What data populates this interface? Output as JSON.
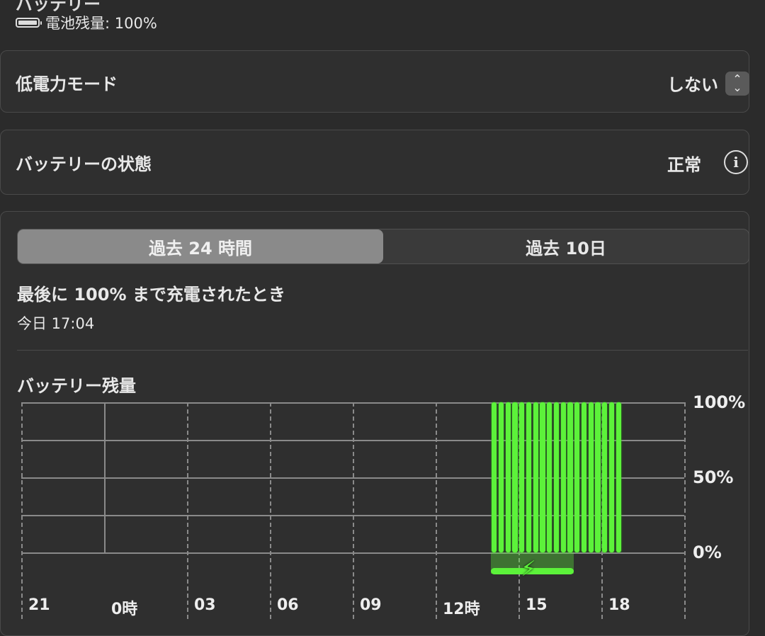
{
  "header": {
    "title": "バッテリー",
    "battery_icon": "battery-full-icon",
    "battery_level_text": "電池残量: 100%"
  },
  "low_power_mode": {
    "label": "低電力モード",
    "value": "しない",
    "icon": "up-down-stepper-icon"
  },
  "battery_health": {
    "label": "バッテリーの状態",
    "value": "正常",
    "icon": "info-icon"
  },
  "tabs": [
    {
      "label": "過去 24 時間",
      "selected": true
    },
    {
      "label": "過去 10日",
      "selected": false
    }
  ],
  "last_charged": {
    "title": "最後に 100% まで充電されたとき",
    "time": "今日 17:04"
  },
  "chart_data": {
    "type": "bar",
    "title": "バッテリー残量",
    "x_tick_labels": [
      "21",
      "0時",
      "03",
      "06",
      "09",
      "12時",
      "15",
      "18"
    ],
    "y_tick_labels": [
      "100%",
      "50%",
      "0%"
    ],
    "ylim": [
      0,
      100
    ],
    "x_range": [
      "21:00",
      "21:00 (+24h)"
    ],
    "bar_interval_minutes": 15,
    "x": [
      "14:00",
      "14:15",
      "14:30",
      "14:45",
      "15:00",
      "15:15",
      "15:30",
      "15:45",
      "16:00",
      "16:15",
      "16:30",
      "16:45",
      "17:00",
      "17:15",
      "17:30",
      "17:45",
      "18:00",
      "18:15",
      "18:30"
    ],
    "values": [
      100,
      100,
      100,
      100,
      100,
      100,
      100,
      100,
      100,
      100,
      100,
      100,
      100,
      100,
      100,
      100,
      100,
      100,
      100
    ],
    "charging_period": [
      "14:00",
      "17:00"
    ],
    "bar_color": "#5cf23a",
    "grid": true
  }
}
